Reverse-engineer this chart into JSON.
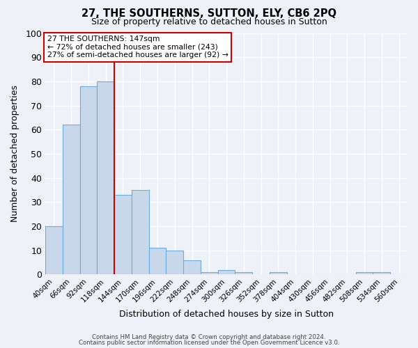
{
  "title": "27, THE SOUTHERNS, SUTTON, ELY, CB6 2PQ",
  "subtitle": "Size of property relative to detached houses in Sutton",
  "xlabel": "Distribution of detached houses by size in Sutton",
  "ylabel": "Number of detached properties",
  "bar_color": "#c8d8ea",
  "bar_edge_color": "#6aabe0",
  "background_color": "#eef2f8",
  "plot_bg_color": "#eef2f8",
  "grid_color": "#ffffff",
  "categories": [
    "40sqm",
    "66sqm",
    "92sqm",
    "118sqm",
    "144sqm",
    "170sqm",
    "196sqm",
    "222sqm",
    "248sqm",
    "274sqm",
    "300sqm",
    "326sqm",
    "352sqm",
    "378sqm",
    "404sqm",
    "430sqm",
    "456sqm",
    "482sqm",
    "508sqm",
    "534sqm",
    "560sqm"
  ],
  "values": [
    20,
    62,
    78,
    80,
    33,
    35,
    11,
    10,
    6,
    1,
    2,
    1,
    0,
    1,
    0,
    0,
    0,
    0,
    1,
    1,
    0
  ],
  "ylim": [
    0,
    100
  ],
  "yticks": [
    0,
    10,
    20,
    30,
    40,
    50,
    60,
    70,
    80,
    90,
    100
  ],
  "vline_color": "#cc0000",
  "annotation_line1": "27 THE SOUTHERNS: 147sqm",
  "annotation_line2": "← 72% of detached houses are smaller (243)",
  "annotation_line3": "27% of semi-detached houses are larger (92) →",
  "annotation_box_color": "#ffffff",
  "annotation_box_edge_color": "#cc0000",
  "footer1": "Contains HM Land Registry data © Crown copyright and database right 2024.",
  "footer2": "Contains public sector information licensed under the Open Government Licence v3.0."
}
